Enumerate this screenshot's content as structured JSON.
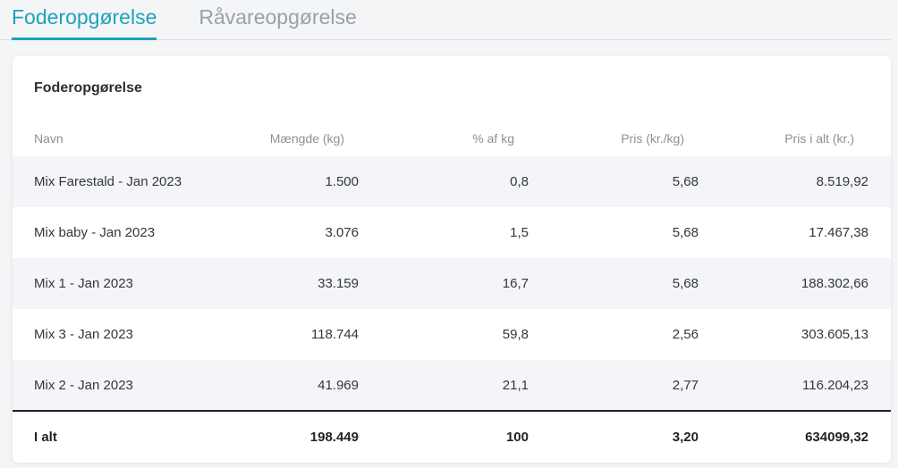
{
  "tabs": [
    {
      "label": "Foderopgørelse",
      "active": true
    },
    {
      "label": "Råvareopgørelse",
      "active": false
    }
  ],
  "colors": {
    "accent": "#1ba3b9",
    "inactive_tab": "#9aa0a6",
    "row_shade": "#f4f5f8",
    "page_bg": "#f4f5f7"
  },
  "card": {
    "title": "Foderopgørelse"
  },
  "table": {
    "columns": [
      "Navn",
      "Mængde (kg)",
      "% af kg",
      "Pris (kr./kg)",
      "Pris i alt (kr.)"
    ],
    "rows": [
      [
        "Mix Farestald - Jan 2023",
        "1.500",
        "0,8",
        "5,68",
        "8.519,92"
      ],
      [
        "Mix baby - Jan 2023",
        "3.076",
        "1,5",
        "5,68",
        "17.467,38"
      ],
      [
        "Mix 1 - Jan 2023",
        "33.159",
        "16,7",
        "5,68",
        "188.302,66"
      ],
      [
        "Mix 3 - Jan 2023",
        "118.744",
        "59,8",
        "2,56",
        "303.605,13"
      ],
      [
        "Mix 2 - Jan 2023",
        "41.969",
        "21,1",
        "2,77",
        "116.204,23"
      ]
    ],
    "total": [
      "I alt",
      "198.449",
      "100",
      "3,20",
      "634099,32"
    ]
  }
}
